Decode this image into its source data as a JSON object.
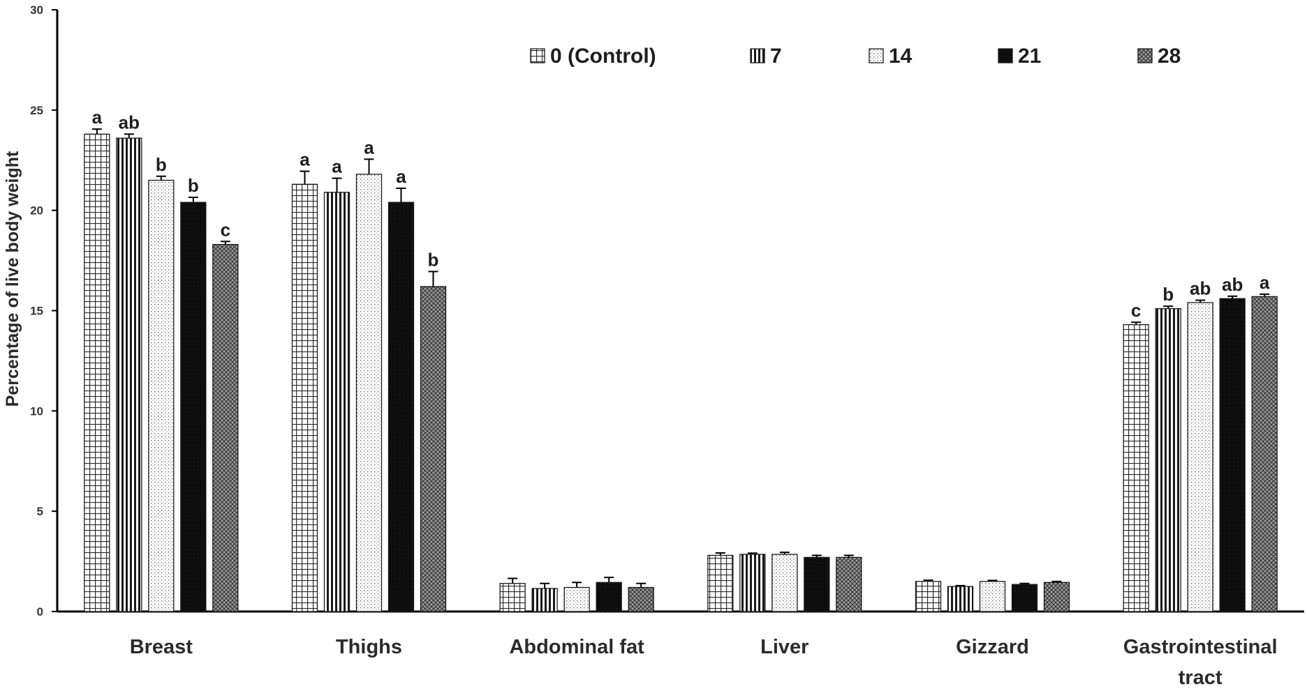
{
  "chart_data": {
    "type": "bar",
    "ylabel": "Percentage of live body weight",
    "ylim": [
      0,
      30
    ],
    "yticks": [
      "0",
      "5",
      "10",
      "15",
      "20",
      "25",
      "30"
    ],
    "grid": false,
    "legend_position": "top-right",
    "categories": [
      "Breast",
      "Thighs",
      "Abdominal fat",
      "Liver",
      "Gizzard",
      "Gastrointestinal tract"
    ],
    "series": [
      {
        "name": "0 (Control)",
        "pattern": "grid",
        "values": [
          23.8,
          21.3,
          1.4,
          2.8,
          1.5,
          14.3
        ],
        "errors": [
          0.25,
          0.65,
          0.25,
          0.12,
          0.06,
          0.12
        ],
        "labels": [
          "a",
          "a",
          "",
          "",
          "",
          "c"
        ]
      },
      {
        "name": "7",
        "pattern": "vertical-lines",
        "values": [
          23.6,
          20.9,
          1.15,
          2.85,
          1.25,
          15.1
        ],
        "errors": [
          0.2,
          0.7,
          0.25,
          0.06,
          0.04,
          0.12
        ],
        "labels": [
          "ab",
          "a",
          "",
          "",
          "",
          "b"
        ]
      },
      {
        "name": "14",
        "pattern": "dots",
        "values": [
          21.5,
          21.8,
          1.2,
          2.85,
          1.5,
          15.4
        ],
        "errors": [
          0.2,
          0.75,
          0.25,
          0.1,
          0.05,
          0.12
        ],
        "labels": [
          "b",
          "a",
          "",
          "",
          "",
          "ab"
        ]
      },
      {
        "name": "21",
        "pattern": "solid-black",
        "values": [
          20.4,
          20.4,
          1.45,
          2.7,
          1.35,
          15.6
        ],
        "errors": [
          0.25,
          0.7,
          0.25,
          0.1,
          0.05,
          0.12
        ],
        "labels": [
          "b",
          "a",
          "",
          "",
          "",
          "ab"
        ]
      },
      {
        "name": "28",
        "pattern": "crosshatch",
        "values": [
          18.3,
          16.2,
          1.2,
          2.7,
          1.45,
          15.7
        ],
        "errors": [
          0.15,
          0.75,
          0.2,
          0.1,
          0.05,
          0.12
        ],
        "labels": [
          "c",
          "b",
          "",
          "",
          "",
          "a"
        ]
      }
    ]
  },
  "colors": {
    "axis": "#000000",
    "text": "#1e1e1e",
    "bar_fill_light": "#ffffff",
    "bar_fill_dark": "#111111",
    "bar_fill_mid": "#7a7a7a"
  }
}
